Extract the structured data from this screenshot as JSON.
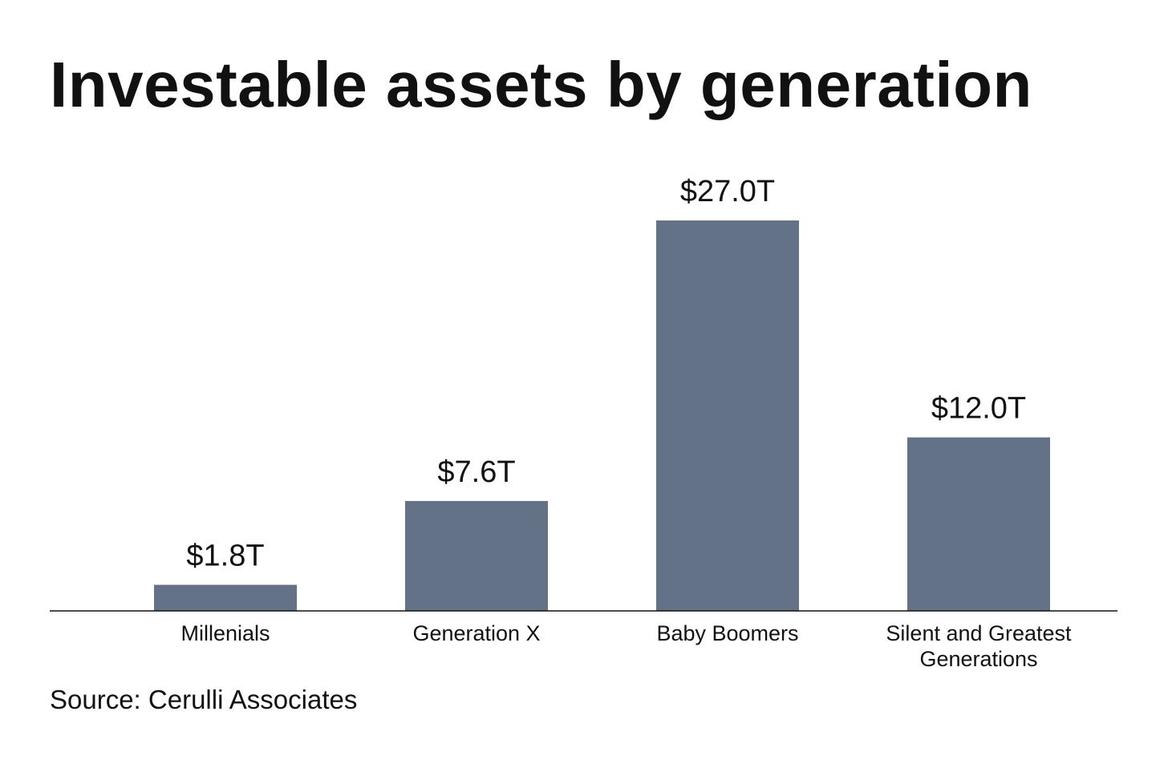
{
  "chart_data": {
    "type": "bar",
    "title": "Investable assets by generation",
    "categories": [
      [
        "Millenials"
      ],
      [
        "Generation X"
      ],
      [
        "Baby Boomers"
      ],
      [
        "Silent and Greatest",
        "Generations"
      ]
    ],
    "values": [
      1.8,
      7.6,
      27.0,
      12.0
    ],
    "value_labels": [
      "$1.8T",
      "$7.6T",
      "$27.0T",
      "$12.0T"
    ],
    "unit": "trillion USD",
    "xlabel": "",
    "ylabel": "",
    "ylim": [
      0,
      27.0
    ],
    "grid": false,
    "legend": "none",
    "bar_color": "#637287"
  },
  "source": "Source: Cerulli Associates",
  "colors": {
    "bar": "#637287",
    "axis": "#111111",
    "text": "#111111",
    "background": "#ffffff"
  }
}
